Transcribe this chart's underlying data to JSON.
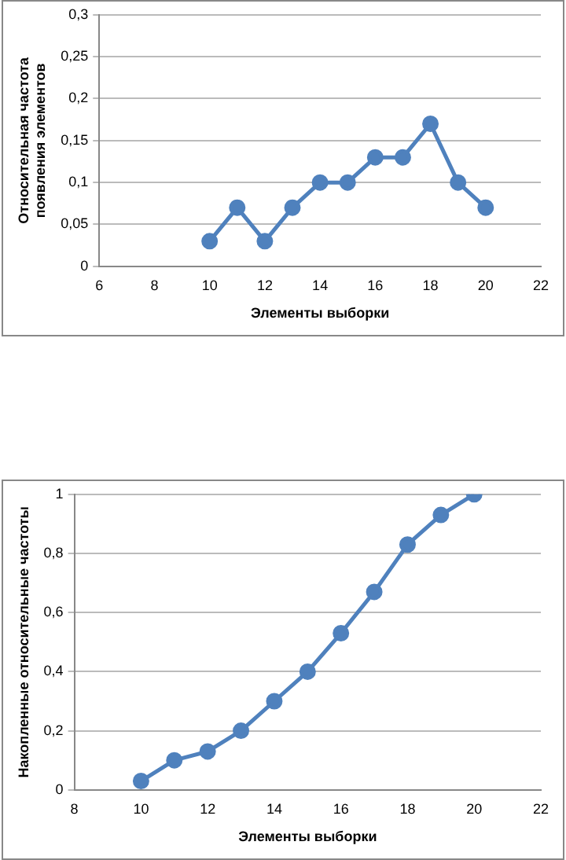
{
  "chart_data": [
    {
      "type": "line",
      "x": [
        10,
        11,
        12,
        13,
        14,
        15,
        16,
        17,
        18,
        19,
        20
      ],
      "xlabel": "Элементы выборки",
      "ylabel": "Относительная частота появления элементов",
      "series": [
        {
          "color": "#4f81bd",
          "values": [
            0.03,
            0.07,
            0.03,
            0.07,
            0.1,
            0.1,
            0.13,
            0.13,
            0.17,
            0.1,
            0.07
          ]
        }
      ],
      "xlim": [
        6,
        22
      ],
      "xticks": [
        6,
        8,
        10,
        12,
        14,
        16,
        18,
        20,
        22
      ],
      "ylim": [
        0,
        0.3
      ],
      "yticks": [
        {
          "value": 0,
          "label": "0"
        },
        {
          "value": 0.05,
          "label": "0,05"
        },
        {
          "value": 0.1,
          "label": "0,1"
        },
        {
          "value": 0.15,
          "label": "0,15"
        },
        {
          "value": 0.2,
          "label": "0,2"
        },
        {
          "value": 0.25,
          "label": "0,25"
        },
        {
          "value": 0.3,
          "label": "0,3"
        }
      ],
      "grid": "y",
      "legend": false,
      "marker": "circle"
    },
    {
      "type": "line",
      "x": [
        10,
        11,
        12,
        13,
        14,
        15,
        16,
        17,
        18,
        19,
        20
      ],
      "xlabel": "Элементы выборки",
      "ylabel": "Накопленные относительные частоты",
      "series": [
        {
          "color": "#4f81bd",
          "values": [
            0.03,
            0.1,
            0.13,
            0.2,
            0.3,
            0.4,
            0.53,
            0.67,
            0.83,
            0.93,
            1
          ]
        }
      ],
      "xlim": [
        8,
        22
      ],
      "xticks": [
        8,
        10,
        12,
        14,
        16,
        18,
        20,
        22
      ],
      "ylim": [
        0,
        1
      ],
      "yticks": [
        {
          "value": 0,
          "label": "0"
        },
        {
          "value": 0.2,
          "label": "0,2"
        },
        {
          "value": 0.4,
          "label": "0,4"
        },
        {
          "value": 0.6,
          "label": "0,6"
        },
        {
          "value": 0.8,
          "label": "0,8"
        },
        1
      ],
      "grid": "y",
      "legend": false,
      "marker": "circle"
    }
  ]
}
